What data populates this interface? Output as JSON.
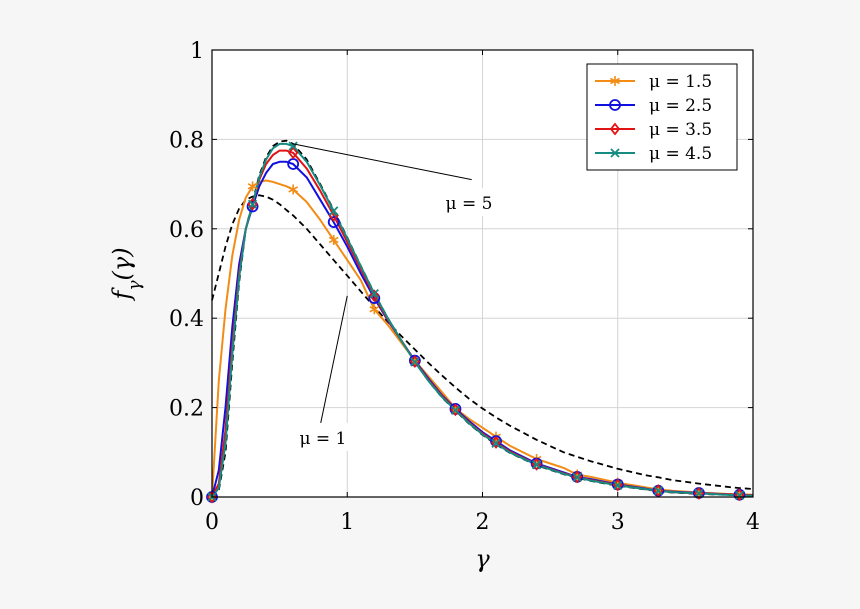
{
  "chart_data": {
    "type": "line",
    "xlabel": "γ",
    "ylabel": "f_γ(γ)",
    "xlim": [
      0,
      4
    ],
    "ylim": [
      0,
      1
    ],
    "xticks": [
      "0",
      "1",
      "2",
      "3",
      "4"
    ],
    "yticks": [
      "0",
      "0.2",
      "0.4",
      "0.6",
      "0.8",
      "1"
    ],
    "grid": true,
    "legend_position": "top-right",
    "x": [
      0,
      0.05,
      0.1,
      0.15,
      0.2,
      0.25,
      0.3,
      0.35,
      0.4,
      0.45,
      0.5,
      0.55,
      0.6,
      0.7,
      0.8,
      0.9,
      1.0,
      1.1,
      1.2,
      1.3,
      1.4,
      1.5,
      1.6,
      1.7,
      1.8,
      1.9,
      2.0,
      2.1,
      2.2,
      2.4,
      2.6,
      2.7,
      2.8,
      3.0,
      3.2,
      3.3,
      3.4,
      3.6,
      3.8,
      3.9,
      4.0
    ],
    "series": [
      {
        "name": "μ = 1.5",
        "color": "#f28c14",
        "marker": "star",
        "values": [
          0,
          0.26,
          0.42,
          0.54,
          0.62,
          0.67,
          0.695,
          0.705,
          0.708,
          0.705,
          0.7,
          0.695,
          0.688,
          0.66,
          0.62,
          0.575,
          0.53,
          0.485,
          0.42,
          0.385,
          0.345,
          0.305,
          0.27,
          0.235,
          0.198,
          0.175,
          0.155,
          0.135,
          0.115,
          0.085,
          0.065,
          0.05,
          0.045,
          0.032,
          0.022,
          0.017,
          0.014,
          0.01,
          0.007,
          0.006,
          0.005
        ]
      },
      {
        "name": "μ = 2.5",
        "color": "#1010e0",
        "marker": "circle",
        "values": [
          0,
          0.06,
          0.2,
          0.38,
          0.52,
          0.6,
          0.65,
          0.695,
          0.725,
          0.745,
          0.75,
          0.75,
          0.745,
          0.715,
          0.665,
          0.615,
          0.56,
          0.5,
          0.445,
          0.395,
          0.35,
          0.305,
          0.265,
          0.228,
          0.197,
          0.17,
          0.145,
          0.125,
          0.105,
          0.075,
          0.055,
          0.045,
          0.04,
          0.028,
          0.019,
          0.014,
          0.012,
          0.009,
          0.006,
          0.005,
          0.004
        ]
      },
      {
        "name": "μ = 3.5",
        "color": "#e01414",
        "marker": "diamond",
        "values": [
          0,
          0.03,
          0.15,
          0.34,
          0.5,
          0.6,
          0.655,
          0.71,
          0.745,
          0.765,
          0.775,
          0.775,
          0.77,
          0.735,
          0.685,
          0.63,
          0.57,
          0.51,
          0.45,
          0.397,
          0.35,
          0.303,
          0.262,
          0.226,
          0.195,
          0.167,
          0.142,
          0.122,
          0.102,
          0.073,
          0.053,
          0.045,
          0.038,
          0.027,
          0.018,
          0.014,
          0.011,
          0.008,
          0.006,
          0.005,
          0.004
        ]
      },
      {
        "name": "μ = 4.5",
        "color": "#158b82",
        "marker": "x",
        "values": [
          0,
          0.02,
          0.12,
          0.32,
          0.49,
          0.6,
          0.655,
          0.715,
          0.755,
          0.78,
          0.79,
          0.79,
          0.785,
          0.75,
          0.697,
          0.64,
          0.578,
          0.516,
          0.455,
          0.4,
          0.35,
          0.302,
          0.26,
          0.224,
          0.194,
          0.165,
          0.14,
          0.12,
          0.1,
          0.072,
          0.052,
          0.044,
          0.037,
          0.026,
          0.018,
          0.014,
          0.011,
          0.008,
          0.005,
          0.004,
          0.003
        ]
      },
      {
        "color": "#000000",
        "dashed": true,
        "values": [
          0.44,
          0.5,
          0.56,
          0.61,
          0.645,
          0.665,
          0.672,
          0.675,
          0.672,
          0.665,
          0.655,
          0.642,
          0.63,
          0.6,
          0.565,
          0.53,
          0.495,
          0.46,
          0.425,
          0.392,
          0.36,
          0.33,
          0.3,
          0.272,
          0.245,
          0.22,
          0.198,
          0.178,
          0.16,
          0.128,
          0.1,
          0.09,
          0.08,
          0.063,
          0.049,
          0.044,
          0.038,
          0.03,
          0.023,
          0.02,
          0.018
        ]
      },
      {
        "color": "#000000",
        "dashed": true,
        "values": [
          0,
          0.015,
          0.1,
          0.3,
          0.48,
          0.6,
          0.66,
          0.72,
          0.76,
          0.785,
          0.795,
          0.797,
          0.79,
          0.755,
          0.7,
          0.642,
          0.58,
          0.517,
          0.456,
          0.4,
          0.35,
          0.302,
          0.26,
          0.223,
          0.193,
          0.164,
          0.139,
          0.118,
          0.099,
          0.071,
          0.051,
          0.043,
          0.036,
          0.025,
          0.017,
          0.013,
          0.01,
          0.007,
          0.005,
          0.004,
          0.003
        ]
      }
    ],
    "marker_x": [
      0,
      0.3,
      0.6,
      0.9,
      1.2,
      1.5,
      1.8,
      2.1,
      2.4,
      2.7,
      3.0,
      3.3,
      3.6,
      3.9
    ],
    "annotations": [
      {
        "text": "μ = 5",
        "x": 1.9,
        "y": 0.655,
        "pointer": [
          0.6,
          0.79
        ],
        "pointer_end": [
          1.92,
          0.71
        ]
      },
      {
        "text": "μ = 1",
        "x": 0.82,
        "y": 0.13,
        "pointer": [
          1.0,
          0.45
        ],
        "pointer_end": [
          0.8,
          0.16
        ]
      }
    ]
  }
}
